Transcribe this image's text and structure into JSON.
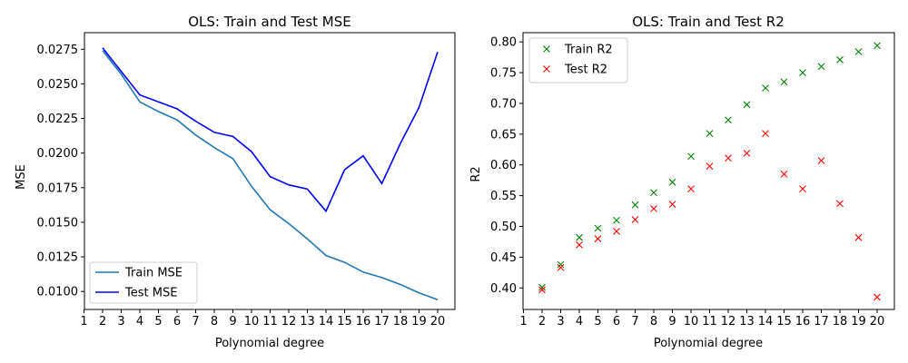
{
  "chart_data": [
    {
      "type": "line",
      "title": "OLS: Train and Test MSE",
      "xlabel": "Polynomial degree",
      "ylabel": "MSE",
      "xlim": [
        1,
        20
      ],
      "ylim": [
        0.0087,
        0.0287
      ],
      "x_ticks": [
        "1",
        "2",
        "3",
        "4",
        "5",
        "6",
        "7",
        "8",
        "9",
        "10",
        "11",
        "12",
        "13",
        "14",
        "15",
        "16",
        "17",
        "18",
        "19",
        "20"
      ],
      "y_ticks": [
        "0.0100",
        "0.0125",
        "0.0150",
        "0.0175",
        "0.0200",
        "0.0225",
        "0.0250",
        "0.0275"
      ],
      "grid": false,
      "legend": "lower-left",
      "x": [
        2,
        3,
        4,
        5,
        6,
        7,
        8,
        9,
        10,
        11,
        12,
        13,
        14,
        15,
        16,
        17,
        18,
        19,
        20
      ],
      "series": [
        {
          "name": "Train MSE",
          "color": "#1f77b4",
          "values": [
            0.0274,
            0.0257,
            0.0237,
            0.023,
            0.0224,
            0.0213,
            0.0204,
            0.0196,
            0.0176,
            0.0159,
            0.0149,
            0.0138,
            0.0126,
            0.0121,
            0.0114,
            0.011,
            0.0105,
            0.0099,
            0.0094
          ]
        },
        {
          "name": "Test MSE",
          "color": "#0000ff",
          "values": [
            0.0276,
            0.0259,
            0.0242,
            0.0237,
            0.0232,
            0.0223,
            0.0215,
            0.0212,
            0.0201,
            0.0183,
            0.0177,
            0.0174,
            0.0158,
            0.0188,
            0.0198,
            0.0178,
            0.0207,
            0.0233,
            0.0273
          ]
        }
      ]
    },
    {
      "type": "scatter",
      "title": "OLS: Train and Test R2",
      "xlabel": "Polynomial degree",
      "ylabel": "R2",
      "xlim": [
        1,
        20
      ],
      "ylim": [
        0.365,
        0.815
      ],
      "x_ticks": [
        "1",
        "2",
        "3",
        "4",
        "5",
        "6",
        "7",
        "8",
        "9",
        "10",
        "11",
        "12",
        "13",
        "14",
        "15",
        "16",
        "17",
        "18",
        "19",
        "20"
      ],
      "y_ticks": [
        "0.40",
        "0.45",
        "0.50",
        "0.55",
        "0.60",
        "0.65",
        "0.70",
        "0.75",
        "0.80"
      ],
      "grid": false,
      "legend": "top-left",
      "marker": "x",
      "x": [
        2,
        3,
        4,
        5,
        6,
        7,
        8,
        9,
        10,
        11,
        12,
        13,
        14,
        15,
        16,
        17,
        18,
        19,
        20
      ],
      "series": [
        {
          "name": "Train R2",
          "color": "#008000",
          "values": [
            0.401,
            0.438,
            0.482,
            0.497,
            0.51,
            0.535,
            0.555,
            0.572,
            0.614,
            0.651,
            0.673,
            0.698,
            0.725,
            0.735,
            0.75,
            0.76,
            0.771,
            0.784,
            0.794
          ]
        },
        {
          "name": "Test R2",
          "color": "#ff0000",
          "values": [
            0.397,
            0.433,
            0.47,
            0.48,
            0.492,
            0.511,
            0.529,
            0.536,
            0.561,
            0.598,
            0.611,
            0.619,
            0.651,
            0.585,
            0.561,
            0.607,
            0.537,
            0.482,
            0.385
          ]
        }
      ]
    }
  ]
}
